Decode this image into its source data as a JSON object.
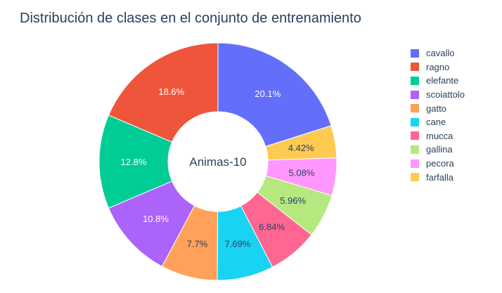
{
  "chart_data": {
    "type": "pie",
    "donut": true,
    "title": "Distribución de clases en el conjunto de entrenamiento",
    "center_label": "Animas-10",
    "legend_position": "right",
    "slices": [
      {
        "label": "cavallo",
        "value": 20.1,
        "display": "20.1%",
        "color": "#636efa"
      },
      {
        "label": "farfalla",
        "value": 4.42,
        "display": "4.42%",
        "color": "#fecb52"
      },
      {
        "label": "pecora",
        "value": 5.08,
        "display": "5.08%",
        "color": "#ff97ff"
      },
      {
        "label": "gallina",
        "value": 5.96,
        "display": "5.96%",
        "color": "#b6e880"
      },
      {
        "label": "mucca",
        "value": 6.84,
        "display": "6.84%",
        "color": "#ff6692"
      },
      {
        "label": "cane",
        "value": 7.69,
        "display": "7.69%",
        "color": "#19d3f3"
      },
      {
        "label": "gatto",
        "value": 7.7,
        "display": "7.7%",
        "color": "#ffa15a"
      },
      {
        "label": "scoiattolo",
        "value": 10.8,
        "display": "10.8%",
        "color": "#ab63fa"
      },
      {
        "label": "elefante",
        "value": 12.8,
        "display": "12.8%",
        "color": "#00cc96"
      },
      {
        "label": "ragno",
        "value": 18.6,
        "display": "18.6%",
        "color": "#ef553b"
      }
    ],
    "legend": [
      "cavallo",
      "ragno",
      "elefante",
      "scoiattolo",
      "gatto",
      "cane",
      "mucca",
      "gallina",
      "pecora",
      "farfalla"
    ]
  }
}
